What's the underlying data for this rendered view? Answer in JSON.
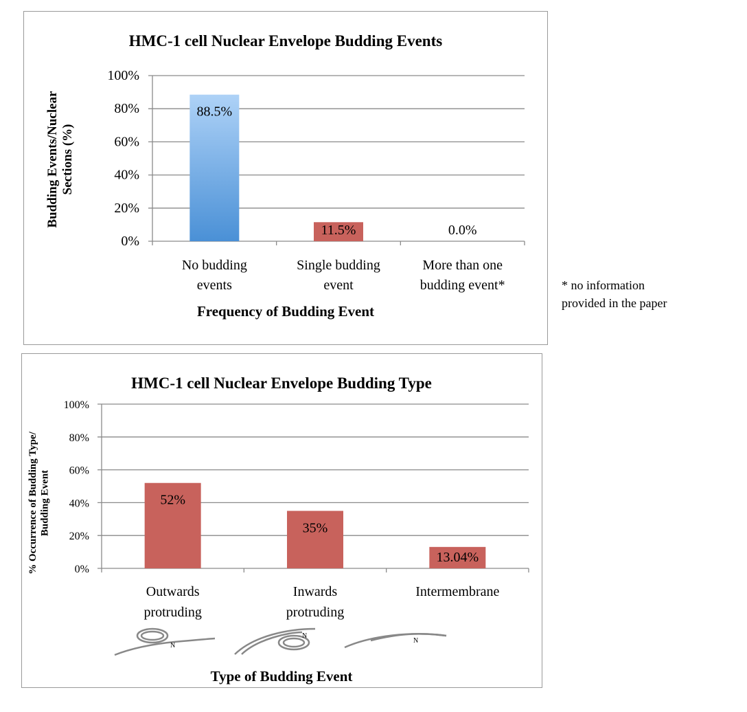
{
  "chart_data": [
    {
      "type": "bar",
      "title": "HMC-1 cell Nuclear Envelope Budding Events",
      "xlabel": "Frequency of Budding Event",
      "ylabel": [
        "Budding Events/Nuclear",
        "Sections (%)"
      ],
      "ylim": [
        0,
        100
      ],
      "yticks": [
        "0%",
        "20%",
        "40%",
        "60%",
        "80%",
        "100%"
      ],
      "grid": true,
      "categories": [
        [
          "No budding",
          "events"
        ],
        [
          "Single budding",
          "event"
        ],
        [
          "More than one",
          "budding event*"
        ]
      ],
      "values": [
        88.5,
        11.5,
        0.0
      ],
      "data_labels": [
        "88.5%",
        "11.5%",
        "0.0%"
      ],
      "bar_colors": [
        "gradient-blue",
        "#c8625c",
        "#c8625c"
      ]
    },
    {
      "type": "bar",
      "title": "HMC-1 cell Nuclear Envelope Budding Type",
      "xlabel": "Type of Budding Event",
      "ylabel": [
        "% Occurrence of Budding Type/",
        "Budding Event"
      ],
      "ylim": [
        0,
        100
      ],
      "yticks": [
        "0%",
        "20%",
        "40%",
        "60%",
        "80%",
        "100%"
      ],
      "grid": true,
      "categories": [
        [
          "Outwards",
          "protruding"
        ],
        [
          "Inwards",
          "protruding"
        ],
        [
          "Intermembrane"
        ]
      ],
      "values": [
        52,
        35,
        13.04
      ],
      "data_labels": [
        "52%",
        "35%",
        "13.04%"
      ],
      "bar_colors": [
        "#c8625c",
        "#c8625c",
        "#c8625c"
      ]
    }
  ],
  "footnote": [
    "* no information",
    "provided in the paper"
  ],
  "colors": {
    "red": "#c8625c",
    "blue_top": "#aed2f7",
    "blue_bottom": "#4a90d6",
    "grid": "#8a8a8a"
  }
}
